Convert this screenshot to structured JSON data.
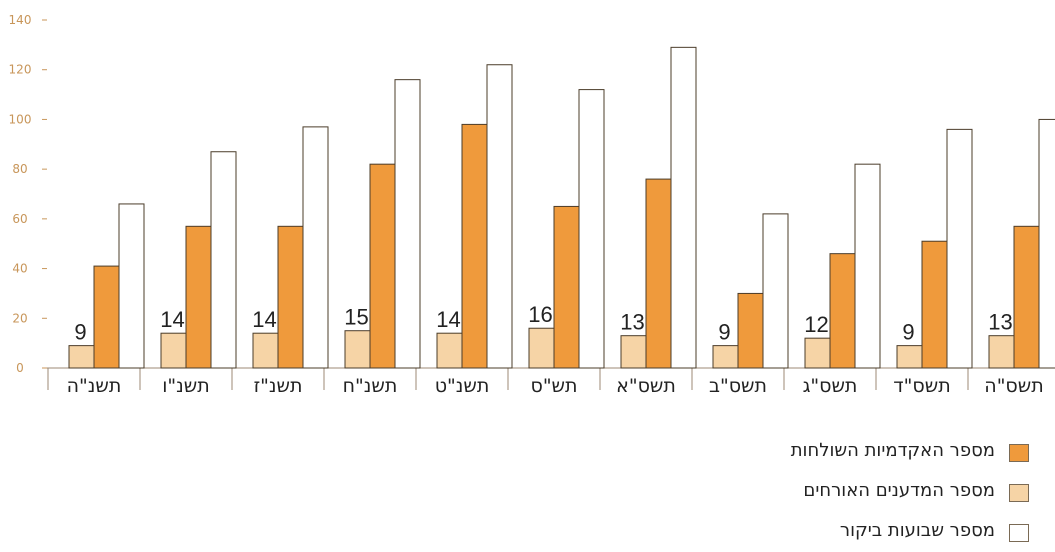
{
  "chart_data": {
    "type": "bar",
    "categories": [
      "תשנ\"ה",
      "תשנ\"ו",
      "תשנ\"ז",
      "תשנ\"ח",
      "תשנ\"ט",
      "תש\"ס",
      "תשס\"א",
      "תשס\"ב",
      "תשס\"ג",
      "תשס\"ד",
      "תשס\"ה"
    ],
    "series": [
      {
        "name": "מספר המדענים האורחים",
        "values": [
          9,
          14,
          14,
          15,
          14,
          16,
          13,
          9,
          12,
          9,
          13
        ],
        "color": "#f6d4a6",
        "labels": [
          "9",
          "14",
          "14",
          "15",
          "14",
          "16",
          "13",
          "9",
          "12",
          "9",
          "13"
        ]
      },
      {
        "name": "מספר האקדמיות השולחות",
        "values": [
          41,
          57,
          57,
          82,
          98,
          65,
          76,
          30,
          46,
          51,
          57
        ],
        "color": "#ef9a3c"
      },
      {
        "name": "מספר שבועות ביקור",
        "values": [
          66,
          87,
          97,
          116,
          122,
          112,
          129,
          62,
          82,
          96,
          100
        ],
        "color": "#ffffff"
      }
    ],
    "yticks": [
      0,
      20,
      40,
      60,
      80,
      100,
      120,
      140
    ],
    "ylim": [
      0,
      140
    ],
    "grid": false,
    "legend_position": "bottom-right",
    "title": "",
    "xlabel": "",
    "ylabel": ""
  },
  "legend": {
    "items": [
      {
        "label": "מספר האקדמיות השולחות",
        "color": "#ef9a3c"
      },
      {
        "label": "מספר המדענים האורחים",
        "color": "#f6d4a6"
      },
      {
        "label": "מספר שבועות ביקור",
        "color": "#ffffff"
      }
    ]
  }
}
